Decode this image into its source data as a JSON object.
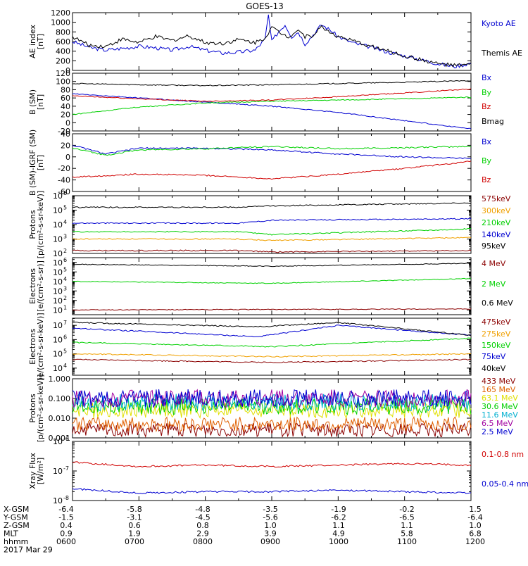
{
  "title": "GOES-13",
  "colors": {
    "black": "#000000",
    "blue": "#0000d0",
    "green": "#00d000",
    "red": "#d00000",
    "orange": "#f0a000",
    "cyan": "#00b0d0",
    "yellow": "#e0e000",
    "purple": "#a000a0",
    "brown": "#8b0000",
    "darkorange": "#e06000"
  },
  "footer": {
    "rows": [
      {
        "label": "X-GSM",
        "values": [
          "-6.4",
          "-5.8",
          "-4.8",
          "-3.5",
          "-1.9",
          "-0.2",
          "1.5"
        ]
      },
      {
        "label": "Y-GSM",
        "values": [
          "-1.5",
          "-3.1",
          "-4.5",
          "-5.6",
          "-6.2",
          "-6.5",
          "-6.4"
        ]
      },
      {
        "label": "Z-GSM",
        "values": [
          "0.4",
          "0.6",
          "0.8",
          "1.0",
          "1.1",
          "1.1",
          "1.0"
        ]
      },
      {
        "label": "MLT",
        "values": [
          "0.9",
          "1.9",
          "2.9",
          "3.9",
          "4.9",
          "5.8",
          "6.8"
        ]
      },
      {
        "label": "hhmm",
        "values": [
          "0600",
          "0700",
          "0800",
          "0900",
          "1000",
          "1100",
          "1200"
        ]
      }
    ],
    "date": "2017 Mar 29"
  },
  "chart_data": [
    {
      "type": "line",
      "ylabel": [
        "AE index",
        "[nT]"
      ],
      "ylim": [
        0,
        1200
      ],
      "yticks": [
        "0",
        "200",
        "400",
        "600",
        "800",
        "1000",
        "1200"
      ],
      "x_hours": [
        6,
        12
      ],
      "series": [
        {
          "name": "Kyoto AE",
          "color": "blue",
          "x": [
            6.0,
            6.25,
            6.5,
            6.75,
            7.0,
            7.25,
            7.5,
            7.75,
            8.0,
            8.25,
            8.5,
            8.75,
            8.9,
            8.95,
            9.0,
            9.1,
            9.2,
            9.3,
            9.4,
            9.5,
            9.6,
            9.75,
            9.9,
            10.0,
            10.25,
            10.5,
            10.75,
            11.0,
            11.25,
            11.5,
            11.75,
            12.0
          ],
          "y": [
            600,
            480,
            420,
            460,
            500,
            470,
            420,
            500,
            420,
            360,
            380,
            420,
            650,
            1150,
            600,
            800,
            950,
            700,
            800,
            550,
            700,
            950,
            820,
            700,
            560,
            480,
            380,
            300,
            220,
            140,
            80,
            150
          ]
        },
        {
          "name": "Themis AE",
          "color": "black",
          "x": [
            6.0,
            6.25,
            6.5,
            6.75,
            7.0,
            7.25,
            7.5,
            7.75,
            8.0,
            8.25,
            8.5,
            8.75,
            8.9,
            9.0,
            9.1,
            9.25,
            9.4,
            9.5,
            9.6,
            9.75,
            9.9,
            10.0,
            10.25,
            10.5,
            10.75,
            11.0,
            11.25,
            11.5,
            11.75,
            12.0
          ],
          "y": [
            700,
            520,
            500,
            650,
            580,
            700,
            620,
            720,
            580,
            560,
            640,
            580,
            680,
            900,
            800,
            700,
            850,
            700,
            720,
            900,
            780,
            700,
            600,
            500,
            400,
            300,
            220,
            140,
            100,
            120
          ]
        }
      ]
    },
    {
      "type": "line",
      "ylabel": [
        "B (SM)",
        "[nT]"
      ],
      "ylim": [
        -20,
        120
      ],
      "yticks": [
        "-20",
        "0",
        "20",
        "40",
        "60",
        "80",
        "100",
        "120"
      ],
      "x_hours": [
        6,
        12
      ],
      "series": [
        {
          "name": "Bx",
          "color": "blue",
          "x": [
            6,
            7,
            8,
            9,
            10,
            11,
            12
          ],
          "y": [
            70,
            60,
            50,
            40,
            25,
            5,
            -15
          ]
        },
        {
          "name": "By",
          "color": "green",
          "x": [
            6,
            7,
            8,
            9,
            10,
            11,
            12
          ],
          "y": [
            20,
            38,
            48,
            52,
            55,
            58,
            62
          ]
        },
        {
          "name": "Bz",
          "color": "red",
          "x": [
            6,
            7,
            8,
            9,
            10,
            11,
            12
          ],
          "y": [
            65,
            58,
            52,
            55,
            63,
            72,
            82
          ]
        },
        {
          "name": "Bmag",
          "color": "black",
          "x": [
            6,
            7,
            8,
            9,
            10,
            11,
            12
          ],
          "y": [
            95,
            92,
            90,
            92,
            95,
            98,
            102
          ]
        }
      ]
    },
    {
      "type": "line",
      "ylabel": [
        "B (SM)-IGRF (SM)",
        "[nT]"
      ],
      "ylim": [
        -60,
        40
      ],
      "yticks": [
        "-60",
        "-40",
        "-20",
        "0",
        "20",
        "40"
      ],
      "x_hours": [
        6,
        12
      ],
      "series": [
        {
          "name": "Bx",
          "color": "blue",
          "x": [
            6,
            6.5,
            7,
            8,
            9,
            10,
            11,
            12
          ],
          "y": [
            20,
            5,
            15,
            15,
            12,
            5,
            0,
            -3
          ]
        },
        {
          "name": "By",
          "color": "green",
          "x": [
            6,
            6.5,
            7,
            8,
            9,
            10,
            11,
            12
          ],
          "y": [
            15,
            3,
            12,
            14,
            18,
            14,
            16,
            18
          ]
        },
        {
          "name": "Bz",
          "color": "red",
          "x": [
            6,
            7,
            8,
            9,
            10,
            11,
            12
          ],
          "y": [
            -35,
            -30,
            -32,
            -38,
            -30,
            -20,
            -8
          ]
        }
      ]
    },
    {
      "type": "line",
      "ylabel": [
        "Protons",
        "[p/(cm²-s-sr-keV)]"
      ],
      "yscale": "log",
      "ylim_exp": [
        2,
        6
      ],
      "ytick_exp": [
        2,
        3,
        4,
        5,
        6
      ],
      "x_hours": [
        6,
        12
      ],
      "series": [
        {
          "name": "575keV",
          "color": "brown",
          "x": [
            6,
            8.5,
            9,
            12
          ],
          "y_exp": [
            2.2,
            2.2,
            2.1,
            2.2
          ]
        },
        {
          "name": "300keV",
          "color": "orange",
          "x": [
            6,
            8.5,
            9,
            12
          ],
          "y_exp": [
            3.0,
            3.0,
            2.9,
            3.1
          ]
        },
        {
          "name": "210keV",
          "color": "green",
          "x": [
            6,
            8.5,
            9,
            12
          ],
          "y_exp": [
            3.5,
            3.5,
            3.3,
            3.7
          ]
        },
        {
          "name": "140keV",
          "color": "blue",
          "x": [
            6,
            8.5,
            9,
            12
          ],
          "y_exp": [
            4.1,
            4.1,
            4.3,
            4.4
          ]
        },
        {
          "name": "95keV",
          "color": "black",
          "x": [
            6,
            8.5,
            9,
            12
          ],
          "y_exp": [
            5.2,
            5.2,
            5.3,
            5.5
          ]
        }
      ]
    },
    {
      "type": "line",
      "ylabel": [
        "Electrons",
        "[e/(cm²-s-sr)]"
      ],
      "yscale": "log",
      "ylim_exp": [
        0.5,
        6.5
      ],
      "ytick_exp": [
        1,
        2,
        3,
        4,
        5,
        6
      ],
      "x_hours": [
        6,
        12
      ],
      "series": [
        {
          "name": "4 MeV",
          "color": "brown",
          "x": [
            6,
            12
          ],
          "y_exp": [
            1.0,
            1.1
          ]
        },
        {
          "name": "2 MeV",
          "color": "green",
          "x": [
            6,
            9,
            12
          ],
          "y_exp": [
            4.0,
            3.8,
            4.3
          ]
        },
        {
          "name": "0.6 MeV",
          "color": "black",
          "x": [
            6,
            9,
            12
          ],
          "y_exp": [
            5.8,
            5.6,
            5.9
          ]
        }
      ]
    },
    {
      "type": "line",
      "ylabel": [
        "Electrons",
        "[e/(cm²-s-sr-keV)]"
      ],
      "yscale": "log",
      "ylim_exp": [
        3.5,
        7.5
      ],
      "ytick_exp": [
        4,
        5,
        6,
        7
      ],
      "x_hours": [
        6,
        12
      ],
      "series": [
        {
          "name": "475keV",
          "color": "brown",
          "x": [
            6,
            9,
            12
          ],
          "y_exp": [
            4.6,
            4.4,
            4.6
          ]
        },
        {
          "name": "275keV",
          "color": "orange",
          "x": [
            6,
            9,
            12
          ],
          "y_exp": [
            5.0,
            4.8,
            5.0
          ]
        },
        {
          "name": "150keV",
          "color": "green",
          "x": [
            6,
            9,
            12
          ],
          "y_exp": [
            5.8,
            5.5,
            6.1
          ]
        },
        {
          "name": "75keV",
          "color": "blue",
          "x": [
            6,
            8.8,
            10,
            12
          ],
          "y_exp": [
            6.8,
            6.2,
            7.0,
            6.3
          ]
        },
        {
          "name": "40keV",
          "color": "black",
          "x": [
            6,
            8.8,
            10,
            12
          ],
          "y_exp": [
            7.2,
            6.9,
            7.2,
            6.3
          ]
        }
      ]
    },
    {
      "type": "line",
      "ylabel": [
        "Protons",
        "[p/(cm²-s-sr-keV)]"
      ],
      "yscale": "log",
      "ylim_exp": [
        -3,
        0
      ],
      "ytick_labels": [
        "0.001",
        "0.010",
        "0.100",
        "1.000"
      ],
      "x_hours": [
        6,
        12
      ],
      "series": [
        {
          "name": "433 MeV",
          "color": "brown",
          "x": [
            6,
            12
          ],
          "y_exp": [
            -2.6,
            -2.6
          ]
        },
        {
          "name": "165 MeV",
          "color": "darkorange",
          "x": [
            6,
            12
          ],
          "y_exp": [
            -2.3,
            -2.3
          ]
        },
        {
          "name": "63.1 MeV",
          "color": "yellow",
          "x": [
            6,
            12
          ],
          "y_exp": [
            -1.6,
            -1.6
          ]
        },
        {
          "name": "30.6 MeV",
          "color": "green",
          "x": [
            6,
            12
          ],
          "y_exp": [
            -1.4,
            -1.4
          ]
        },
        {
          "name": "11.6 MeV",
          "color": "cyan",
          "x": [
            6,
            12
          ],
          "y_exp": [
            -1.2,
            -1.2
          ]
        },
        {
          "name": "6.5 MeV",
          "color": "purple",
          "x": [
            6,
            12
          ],
          "y_exp": [
            -1.0,
            -1.0
          ]
        },
        {
          "name": "2.5 MeV",
          "color": "blue",
          "x": [
            6,
            12
          ],
          "y_exp": [
            -1.0,
            -1.0
          ]
        }
      ]
    },
    {
      "type": "line",
      "ylabel": [
        "Xray Flux",
        "[W/m²]"
      ],
      "yscale": "log",
      "ylim_exp": [
        -8,
        -6
      ],
      "ytick_exp": [
        -8,
        -7,
        -6
      ],
      "x_hours": [
        6,
        12
      ],
      "series": [
        {
          "name": "0.1-0.8 nm",
          "color": "red",
          "x": [
            6,
            7,
            8,
            9,
            10,
            11,
            12
          ],
          "y_exp": [
            -6.7,
            -6.85,
            -6.8,
            -6.85,
            -6.8,
            -6.75,
            -6.8
          ]
        },
        {
          "name": "0.05-0.4 nm",
          "color": "blue",
          "x": [
            6,
            7,
            8,
            9,
            10,
            11,
            12
          ],
          "y_exp": [
            -7.6,
            -7.75,
            -7.7,
            -7.7,
            -7.65,
            -7.7,
            -7.75
          ]
        }
      ]
    }
  ]
}
